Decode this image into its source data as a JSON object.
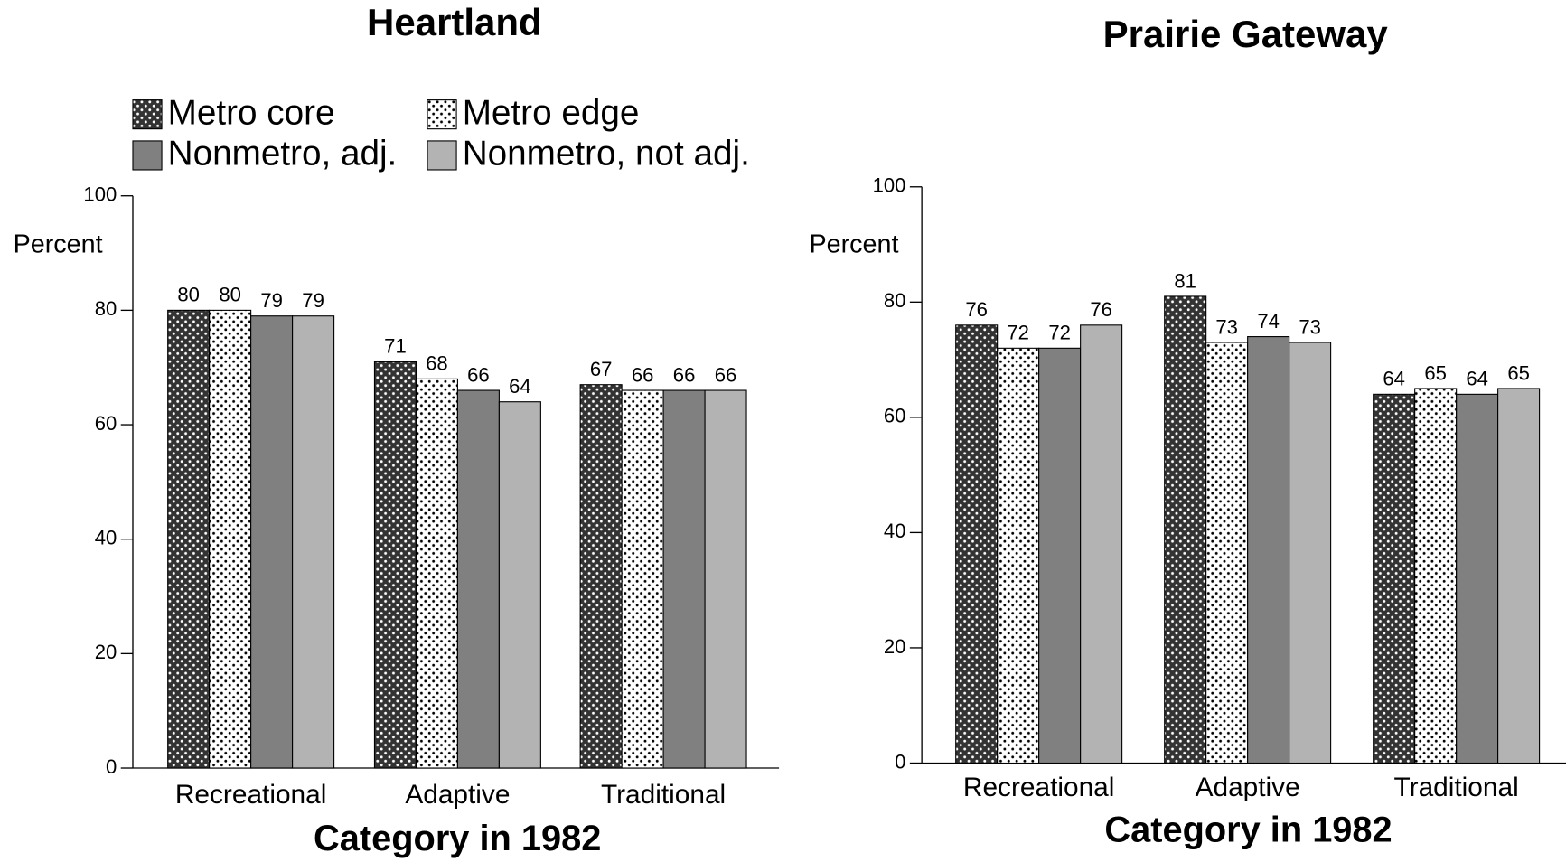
{
  "chart_data": [
    {
      "type": "bar",
      "title": "Heartland",
      "ylabel": "Percent",
      "xlabel": "Category in 1982",
      "categories": [
        "Recreational",
        "Adaptive",
        "Traditional"
      ],
      "series": [
        {
          "name": "Metro core",
          "color": "#333333",
          "pattern": "dots",
          "dot_color": "#ffffff",
          "values": [
            80,
            71,
            67
          ]
        },
        {
          "name": "Metro edge",
          "color": "#ffffff",
          "pattern": "dots",
          "dot_color": "#000000",
          "values": [
            80,
            68,
            66
          ]
        },
        {
          "name": "Nonmetro, adj.",
          "color": "#808080",
          "values": [
            79,
            66,
            66
          ]
        },
        {
          "name": "Nonmetro, not adj.",
          "color": "#b3b3b3",
          "values": [
            79,
            64,
            66
          ]
        }
      ],
      "ylim": [
        0,
        100
      ],
      "yticks": [
        0,
        20,
        40,
        60,
        80,
        100
      ],
      "legend": true
    },
    {
      "type": "bar",
      "title": "Prairie Gateway",
      "ylabel": "Percent",
      "xlabel": "Category in 1982",
      "categories": [
        "Recreational",
        "Adaptive",
        "Traditional"
      ],
      "series": [
        {
          "color": "#333333",
          "pattern": "dots",
          "dot_color": "#ffffff",
          "values": [
            76,
            81,
            64
          ]
        },
        {
          "color": "#ffffff",
          "pattern": "dots",
          "dot_color": "#000000",
          "values": [
            72,
            73,
            65
          ]
        },
        {
          "color": "#808080",
          "values": [
            72,
            74,
            64
          ]
        },
        {
          "color": "#b3b3b3",
          "values": [
            76,
            73,
            65
          ]
        }
      ],
      "ylim": [
        0,
        100
      ],
      "yticks": [
        0,
        20,
        40,
        60,
        80,
        100
      ],
      "legend": false
    }
  ]
}
